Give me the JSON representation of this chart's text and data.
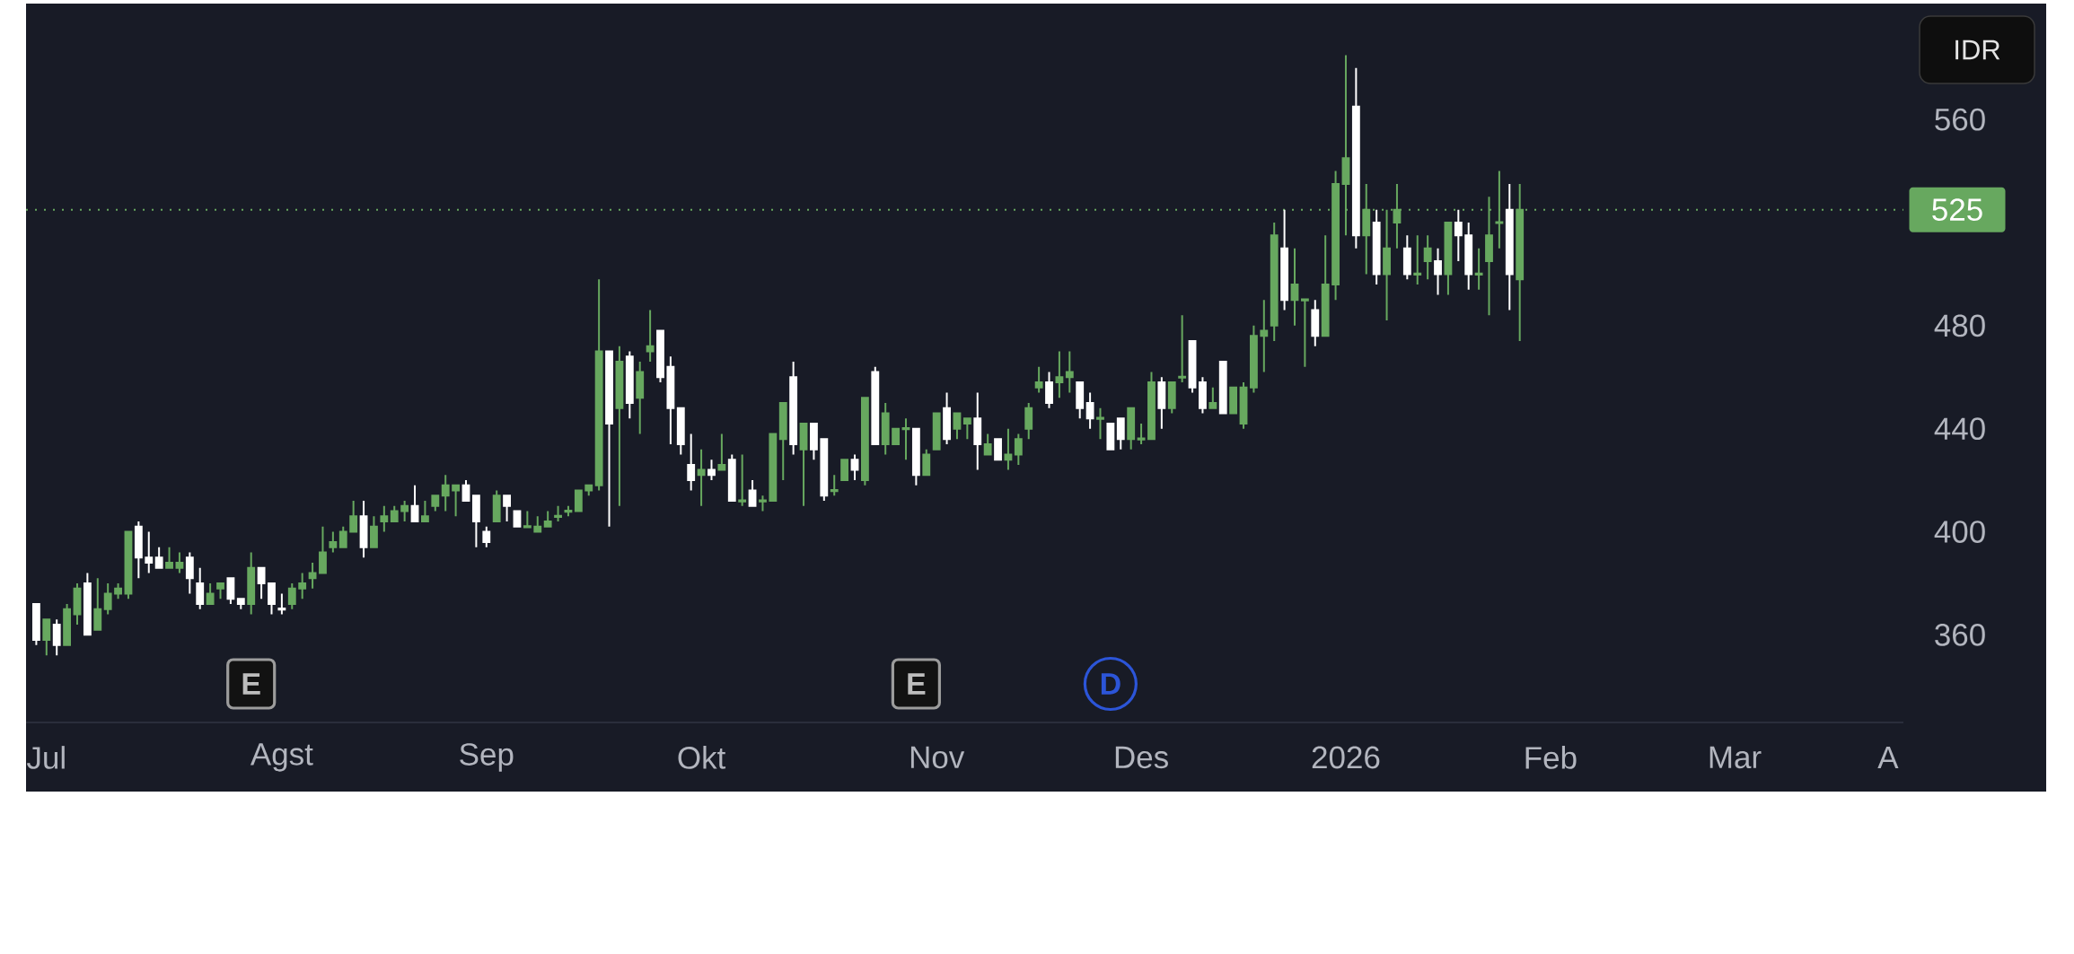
{
  "chart_data": {
    "type": "candlestick",
    "categories": [
      null,
      "Jul",
      null,
      null,
      null,
      null,
      null,
      null,
      null,
      null,
      null,
      null,
      null,
      null,
      null,
      null,
      null,
      null,
      null,
      null,
      null,
      null,
      null,
      null,
      "Agst",
      null,
      null,
      null,
      null,
      null,
      null,
      null,
      null,
      null,
      null,
      null,
      null,
      null,
      null,
      null,
      null,
      null,
      null,
      null,
      "Sep",
      null,
      null,
      null,
      null,
      null,
      null,
      null,
      null,
      null,
      null,
      null,
      null,
      null,
      null,
      null,
      null,
      null,
      null,
      null,
      null,
      "Okt",
      null,
      null,
      null,
      null,
      null,
      null,
      null,
      null,
      null,
      null,
      null,
      null,
      null,
      null,
      null,
      null,
      null,
      null,
      null,
      null,
      null,
      null,
      "Nov",
      null,
      null,
      null,
      null,
      null,
      null,
      null,
      null,
      null,
      null,
      null,
      null,
      null,
      null,
      null,
      null,
      null,
      null,
      null,
      "Des",
      null,
      null,
      null,
      null,
      null,
      null,
      null,
      null,
      null,
      null,
      null,
      null,
      null,
      null,
      null,
      null,
      null,
      null,
      null,
      "2026",
      null,
      null,
      null,
      null,
      null,
      null,
      null,
      null,
      null,
      null,
      null,
      null,
      null,
      null,
      null,
      null,
      null,
      null,
      null,
      "Feb",
      null,
      null,
      null,
      null,
      null,
      null,
      null,
      null,
      null,
      null,
      null,
      null,
      null,
      null,
      null,
      null,
      null,
      "Mar",
      null,
      null,
      null,
      null,
      null,
      null,
      null,
      null,
      null,
      null,
      null,
      null,
      null,
      null,
      "A"
    ],
    "ohlc": [
      [
        372,
        372,
        356,
        358
      ],
      [
        358,
        366,
        352,
        366
      ],
      [
        364,
        366,
        352,
        356
      ],
      [
        356,
        372,
        356,
        370
      ],
      [
        368,
        380,
        364,
        378
      ],
      [
        380,
        384,
        360,
        360
      ],
      [
        362,
        382,
        362,
        370
      ],
      [
        370,
        380,
        368,
        376
      ],
      [
        376,
        380,
        374,
        378
      ],
      [
        376,
        400,
        374,
        400
      ],
      [
        402,
        404,
        382,
        390
      ],
      [
        390,
        400,
        384,
        388
      ],
      [
        390,
        394,
        386,
        386
      ],
      [
        386,
        394,
        386,
        388
      ],
      [
        386,
        392,
        384,
        388
      ],
      [
        390,
        392,
        376,
        382
      ],
      [
        380,
        386,
        370,
        372
      ],
      [
        372,
        380,
        372,
        376
      ],
      [
        378,
        380,
        374,
        380
      ],
      [
        382,
        382,
        372,
        374
      ],
      [
        374,
        374,
        370,
        372
      ],
      [
        372,
        392,
        368,
        386
      ],
      [
        386,
        386,
        374,
        380
      ],
      [
        380,
        380,
        368,
        372
      ],
      [
        370,
        376,
        368,
        370
      ],
      [
        372,
        380,
        370,
        378
      ],
      [
        378,
        384,
        374,
        380
      ],
      [
        382,
        388,
        378,
        384
      ],
      [
        384,
        402,
        384,
        392
      ],
      [
        394,
        400,
        392,
        396
      ],
      [
        394,
        402,
        394,
        400
      ],
      [
        400,
        412,
        400,
        406
      ],
      [
        406,
        412,
        390,
        394
      ],
      [
        394,
        406,
        394,
        402
      ],
      [
        404,
        410,
        400,
        406
      ],
      [
        404,
        410,
        404,
        408
      ],
      [
        408,
        412,
        404,
        410
      ],
      [
        410,
        418,
        404,
        404
      ],
      [
        404,
        412,
        404,
        406
      ],
      [
        410,
        414,
        408,
        414
      ],
      [
        414,
        422,
        408,
        418
      ],
      [
        416,
        418,
        406,
        418
      ],
      [
        418,
        420,
        412,
        412
      ],
      [
        414,
        414,
        394,
        404
      ],
      [
        400,
        402,
        394,
        396
      ],
      [
        404,
        416,
        404,
        414
      ],
      [
        414,
        414,
        404,
        410
      ],
      [
        408,
        408,
        402,
        402
      ],
      [
        402,
        408,
        402,
        402
      ],
      [
        400,
        406,
        400,
        402
      ],
      [
        402,
        408,
        402,
        404
      ],
      [
        406,
        410,
        404,
        406
      ],
      [
        408,
        410,
        406,
        408
      ],
      [
        408,
        416,
        408,
        416
      ],
      [
        416,
        418,
        414,
        418
      ],
      [
        418,
        498,
        416,
        470
      ],
      [
        470,
        470,
        402,
        442
      ],
      [
        448,
        472,
        410,
        466
      ],
      [
        468,
        470,
        444,
        450
      ],
      [
        452,
        466,
        438,
        462
      ],
      [
        470,
        486,
        466,
        472
      ],
      [
        478,
        478,
        458,
        460
      ],
      [
        464,
        468,
        434,
        448
      ],
      [
        448,
        448,
        430,
        434
      ],
      [
        426,
        438,
        416,
        420
      ],
      [
        422,
        432,
        410,
        424
      ],
      [
        424,
        428,
        420,
        422
      ],
      [
        424,
        438,
        424,
        426
      ],
      [
        428,
        430,
        412,
        412
      ],
      [
        412,
        430,
        410,
        412
      ],
      [
        416,
        420,
        410,
        410
      ],
      [
        412,
        414,
        408,
        412
      ],
      [
        412,
        438,
        412,
        438
      ],
      [
        436,
        450,
        420,
        450
      ],
      [
        460,
        466,
        430,
        434
      ],
      [
        432,
        442,
        410,
        442
      ],
      [
        442,
        442,
        428,
        432
      ],
      [
        436,
        436,
        412,
        414
      ],
      [
        416,
        422,
        414,
        416
      ],
      [
        420,
        428,
        420,
        428
      ],
      [
        428,
        430,
        420,
        424
      ],
      [
        420,
        452,
        418,
        452
      ],
      [
        462,
        464,
        434,
        434
      ],
      [
        434,
        450,
        430,
        446
      ],
      [
        434,
        440,
        434,
        440
      ],
      [
        440,
        444,
        428,
        440
      ],
      [
        440,
        440,
        418,
        422
      ],
      [
        422,
        432,
        422,
        430
      ],
      [
        432,
        446,
        432,
        446
      ],
      [
        448,
        454,
        434,
        436
      ],
      [
        440,
        446,
        436,
        446
      ],
      [
        442,
        444,
        436,
        444
      ],
      [
        444,
        454,
        424,
        434
      ],
      [
        430,
        438,
        430,
        434
      ],
      [
        436,
        436,
        428,
        428
      ],
      [
        428,
        440,
        424,
        430
      ],
      [
        430,
        438,
        426,
        436
      ],
      [
        440,
        450,
        436,
        448
      ],
      [
        456,
        464,
        454,
        458
      ],
      [
        458,
        462,
        448,
        450
      ],
      [
        458,
        470,
        452,
        460
      ],
      [
        460,
        470,
        454,
        462
      ],
      [
        458,
        458,
        444,
        448
      ],
      [
        450,
        454,
        440,
        444
      ],
      [
        444,
        448,
        436,
        444
      ],
      [
        442,
        442,
        432,
        432
      ],
      [
        444,
        444,
        432,
        436
      ],
      [
        436,
        448,
        432,
        448
      ],
      [
        436,
        442,
        434,
        436
      ],
      [
        436,
        462,
        436,
        458
      ],
      [
        458,
        460,
        440,
        448
      ],
      [
        448,
        458,
        446,
        458
      ],
      [
        460,
        484,
        458,
        460
      ],
      [
        474,
        474,
        454,
        456
      ],
      [
        458,
        460,
        446,
        448
      ],
      [
        448,
        456,
        448,
        450
      ],
      [
        466,
        466,
        446,
        446
      ],
      [
        446,
        456,
        446,
        456
      ],
      [
        442,
        458,
        440,
        456
      ],
      [
        456,
        480,
        454,
        476
      ],
      [
        476,
        490,
        462,
        478
      ],
      [
        480,
        520,
        474,
        515
      ],
      [
        510,
        525,
        486,
        490
      ],
      [
        490,
        510,
        480,
        496
      ],
      [
        490,
        490,
        464,
        490
      ],
      [
        486,
        490,
        472,
        476
      ],
      [
        476,
        515,
        476,
        496
      ],
      [
        496,
        540,
        490,
        535
      ],
      [
        535,
        585,
        515,
        545
      ],
      [
        565,
        580,
        510,
        515
      ],
      [
        515,
        535,
        500,
        525
      ],
      [
        520,
        525,
        496,
        500
      ],
      [
        500,
        525,
        482,
        510
      ],
      [
        520,
        535,
        510,
        525
      ],
      [
        510,
        515,
        498,
        500
      ],
      [
        500,
        515,
        496,
        500
      ],
      [
        505,
        515,
        498,
        510
      ],
      [
        505,
        510,
        492,
        500
      ],
      [
        500,
        520,
        492,
        520
      ],
      [
        520,
        525,
        505,
        515
      ],
      [
        515,
        520,
        494,
        500
      ],
      [
        500,
        510,
        494,
        500
      ],
      [
        505,
        530,
        484,
        515
      ],
      [
        520,
        540,
        510,
        520
      ],
      [
        525,
        535,
        486,
        500
      ],
      [
        498,
        535,
        474,
        525
      ],
      null,
      null,
      null,
      null,
      null,
      null,
      null,
      null,
      null,
      null,
      null,
      null,
      null,
      null,
      null,
      null,
      null,
      null,
      null,
      null,
      null,
      null,
      null,
      null,
      null,
      null,
      null,
      null,
      null,
      null,
      null,
      null,
      null,
      null,
      null,
      null
    ],
    "colors": [
      "#ffffff",
      "#67a85f",
      "#ffffff",
      "#67a85f",
      "#67a85f",
      "#ffffff",
      "#67a85f",
      "#67a85f",
      "#67a85f",
      "#67a85f",
      "#ffffff",
      "#ffffff",
      "#ffffff",
      "#67a85f",
      "#67a85f",
      "#ffffff",
      "#ffffff",
      "#67a85f",
      "#67a85f",
      "#ffffff",
      "#ffffff",
      "#67a85f",
      "#ffffff",
      "#ffffff",
      "#ffffff",
      "#67a85f",
      "#67a85f",
      "#67a85f",
      "#67a85f",
      "#67a85f",
      "#67a85f",
      "#67a85f",
      "#ffffff",
      "#67a85f",
      "#67a85f",
      "#67a85f",
      "#67a85f",
      "#ffffff",
      "#67a85f",
      "#67a85f",
      "#67a85f",
      "#67a85f",
      "#ffffff",
      "#ffffff",
      "#ffffff",
      "#67a85f",
      "#ffffff",
      "#ffffff",
      "#67a85f",
      "#67a85f",
      "#67a85f",
      "#67a85f",
      "#67a85f",
      "#67a85f",
      "#67a85f",
      "#67a85f",
      "#ffffff",
      "#67a85f",
      "#ffffff",
      "#67a85f",
      "#67a85f",
      "#ffffff",
      "#ffffff",
      "#ffffff",
      "#ffffff",
      "#67a85f",
      "#ffffff",
      "#67a85f",
      "#ffffff",
      "#67a85f",
      "#ffffff",
      "#67a85f",
      "#67a85f",
      "#67a85f",
      "#ffffff",
      "#67a85f",
      "#ffffff",
      "#ffffff",
      "#67a85f",
      "#67a85f",
      "#ffffff",
      "#67a85f",
      "#ffffff",
      "#67a85f",
      "#67a85f",
      "#67a85f",
      "#ffffff",
      "#67a85f",
      "#67a85f",
      "#ffffff",
      "#67a85f",
      "#67a85f",
      "#ffffff",
      "#67a85f",
      "#ffffff",
      "#67a85f",
      "#67a85f",
      "#67a85f",
      "#67a85f",
      "#ffffff",
      "#67a85f",
      "#67a85f",
      "#ffffff",
      "#ffffff",
      "#67a85f",
      "#ffffff",
      "#ffffff",
      "#67a85f",
      "#67a85f",
      "#67a85f",
      "#ffffff",
      "#67a85f",
      "#67a85f",
      "#ffffff",
      "#ffffff",
      "#67a85f",
      "#ffffff",
      "#67a85f",
      "#67a85f",
      "#67a85f",
      "#67a85f",
      "#67a85f",
      "#ffffff",
      "#67a85f",
      "#67a85f",
      "#ffffff",
      "#67a85f",
      "#67a85f",
      "#67a85f",
      "#ffffff",
      "#67a85f",
      "#ffffff",
      "#67a85f",
      "#67a85f",
      "#ffffff",
      "#67a85f",
      "#67a85f",
      "#ffffff",
      "#67a85f",
      "#ffffff",
      "#ffffff",
      "#67a85f",
      "#67a85f",
      "#67a85f",
      "#ffffff",
      "#67a85f",
      null,
      null,
      null,
      null,
      null,
      null,
      null,
      null,
      null,
      null,
      null,
      null,
      null,
      null,
      null,
      null,
      null,
      null,
      null,
      null,
      null,
      null,
      null,
      null,
      null,
      null,
      null,
      null,
      null,
      null,
      null,
      null,
      null,
      null,
      null,
      null
    ],
    "ylim": [
      326,
      605
    ],
    "yticks": [
      360,
      400,
      440,
      480,
      560
    ],
    "ylabel": "IDR",
    "ref_lines": [
      {
        "axis": "y",
        "value": 525,
        "label": "525",
        "color": "#67a85f",
        "line_style": "dotted"
      }
    ],
    "annotations": [
      "E",
      "E",
      "D"
    ]
  }
}
